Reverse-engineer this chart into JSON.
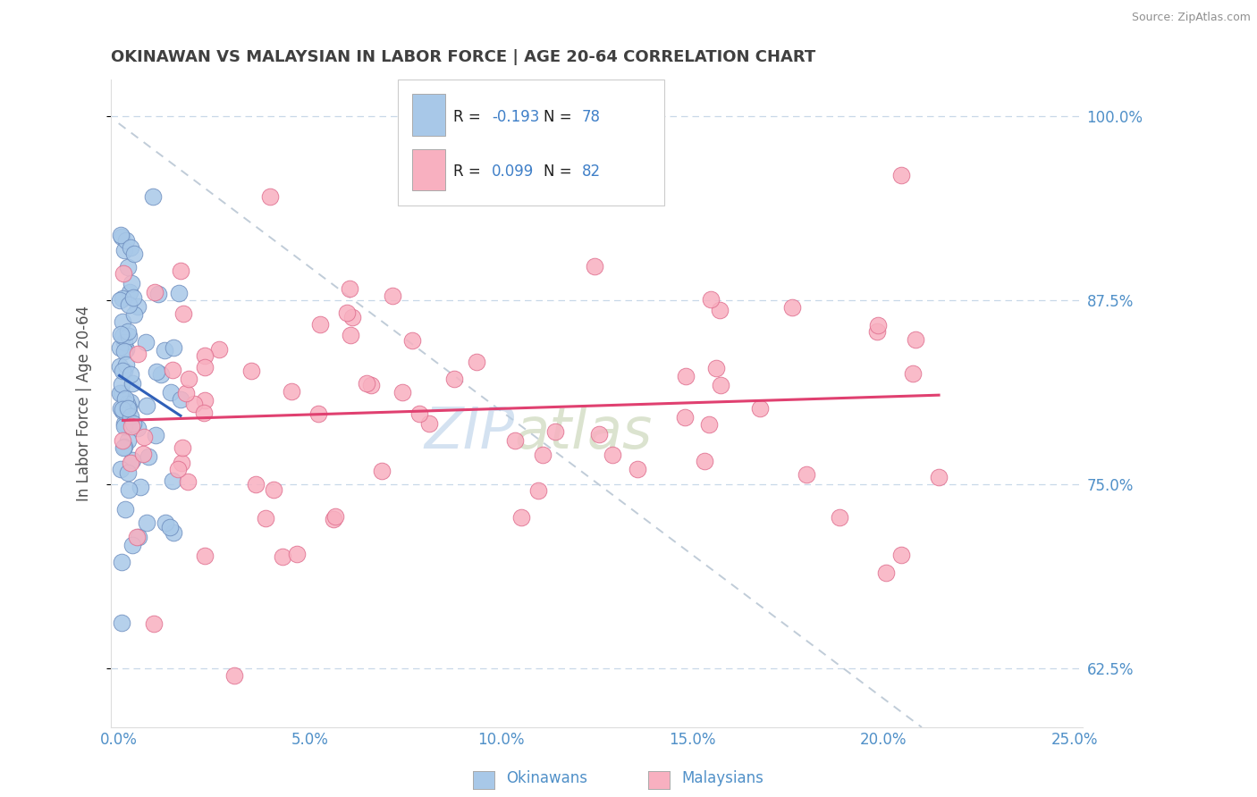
{
  "title": "OKINAWAN VS MALAYSIAN IN LABOR FORCE | AGE 20-64 CORRELATION CHART",
  "source": "Source: ZipAtlas.com",
  "ylabel": "In Labor Force | Age 20-64",
  "xlim": [
    -0.002,
    0.252
  ],
  "ylim": [
    0.585,
    1.025
  ],
  "yticks": [
    0.625,
    0.75,
    0.875,
    1.0
  ],
  "ytick_labels": [
    "62.5%",
    "75.0%",
    "87.5%",
    "100.0%"
  ],
  "xticks": [
    0.0,
    0.05,
    0.1,
    0.15,
    0.2,
    0.25
  ],
  "xtick_labels": [
    "0.0%",
    "5.0%",
    "10.0%",
    "15.0%",
    "20.0%",
    "25.0%"
  ],
  "okinawan_color": "#a8c8e8",
  "malaysian_color": "#f8b0c0",
  "okinawan_edge": "#7090c0",
  "malaysian_edge": "#e07090",
  "trend_blue": "#3060b8",
  "trend_pink": "#e04070",
  "ref_line_color": "#c0ccd8",
  "legend_box_blue": "#a8c8e8",
  "legend_box_pink": "#f8b0c0",
  "R_okinawan": -0.193,
  "N_okinawan": 78,
  "R_malaysian": 0.099,
  "N_malaysian": 82,
  "watermark_zip": "ZIP",
  "watermark_atlas": "atlas",
  "background_color": "#ffffff",
  "grid_color": "#c8d8e8",
  "title_color": "#404040",
  "tick_color": "#5090c8",
  "legend_text_dark": "#202020",
  "legend_num_color": "#4080c8",
  "source_color": "#909090",
  "ylabel_color": "#505050"
}
